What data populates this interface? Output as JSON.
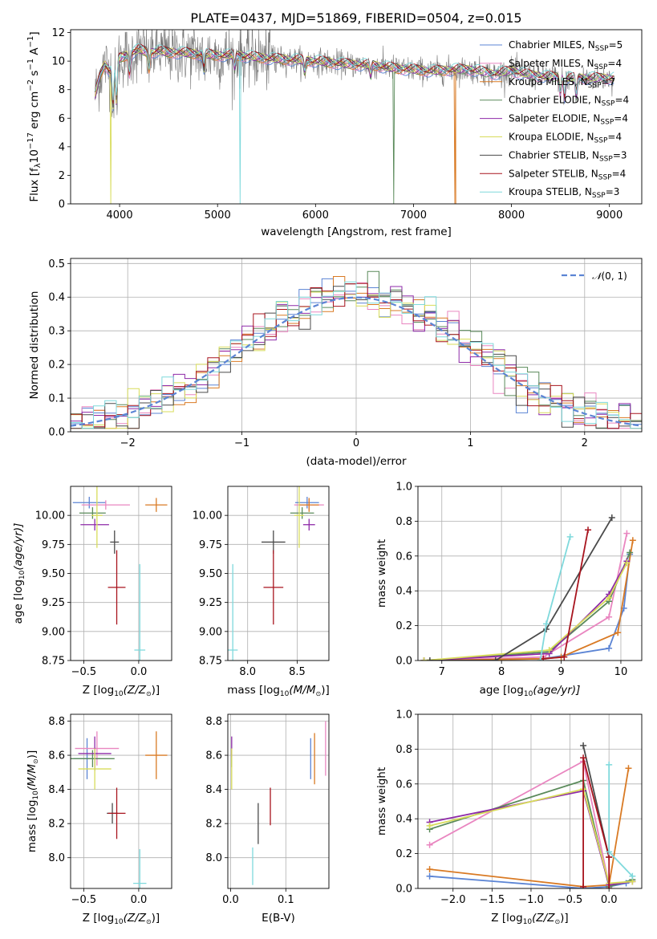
{
  "chart_data": [
    {
      "id": "spectrum",
      "type": "line",
      "title": "PLATE=0437, MJD=51869, FIBERID=0504, z=0.015",
      "xlabel": "wavelength [Angstrom, rest frame]",
      "ylabel_parts": {
        "pre": "Flux [f",
        "sub": "λ",
        "mid": "10",
        "sup1": "−17",
        "mid2": " erg cm",
        "sup2": "−2",
        "mid3": " s",
        "sup3": "−1",
        "mid4": " A",
        "sup4": "−1",
        "post": "]"
      },
      "xlim": [
        3500,
        9330
      ],
      "ylim": [
        0,
        12.2
      ],
      "xticks": [
        4000,
        5000,
        6000,
        7000,
        8000,
        9000
      ],
      "yticks": [
        0,
        2,
        4,
        6,
        8,
        10,
        12
      ],
      "legend": "top-right",
      "legend_sub": "SSP",
      "series": [
        {
          "name": "Chabrier MILES, N",
          "n": "=5",
          "color": "#5b84d4"
        },
        {
          "name": "Salpeter MILES, N",
          "n": "=4",
          "color": "#e986c0"
        },
        {
          "name": "Kroupa MILES, N",
          "n": "=7",
          "color": "#d97a24"
        },
        {
          "name": "Chabrier ELODIE, N",
          "n": "=4",
          "color": "#5a8a5a"
        },
        {
          "name": "Salpeter ELODIE, N",
          "n": "=4",
          "color": "#8e2aa8"
        },
        {
          "name": "Kroupa ELODIE, N",
          "n": "=4",
          "color": "#d8dc5a"
        },
        {
          "name": "Chabrier STELIB, N",
          "n": "=3",
          "color": "#4a4a4a"
        },
        {
          "name": "Salpeter STELIB, N",
          "n": "=4",
          "color": "#a8141e"
        },
        {
          "name": "Kroupa STELIB, N",
          "n": "=3",
          "color": "#7fd9dc"
        }
      ],
      "data_color": "#777777",
      "continuum": {
        "x": [
          3750,
          3800,
          3850,
          3900,
          3950,
          4000,
          4100,
          4200,
          4300,
          4400,
          4500,
          4600,
          4800,
          5000,
          5200,
          5500,
          6000,
          6300,
          6600,
          6800,
          7000,
          7200,
          7400,
          7600,
          7800,
          8000,
          8200,
          8400,
          8600,
          8800,
          9000,
          9050
        ],
        "y": [
          7.6,
          9.0,
          9.8,
          9.3,
          9.6,
          10.2,
          10.5,
          10.8,
          10.6,
          10.7,
          10.6,
          10.6,
          10.5,
          10.4,
          10.4,
          10.2,
          10.0,
          9.8,
          9.7,
          9.5,
          9.4,
          9.3,
          9.4,
          9.4,
          9.1,
          9.3,
          9.0,
          8.9,
          8.8,
          8.8,
          8.8,
          8.8
        ]
      }
    },
    {
      "id": "residual-histogram",
      "type": "step",
      "xlabel": "(data-model)/error",
      "ylabel": "Normed distribution",
      "xlim": [
        -2.5,
        2.5
      ],
      "ylim": [
        0,
        0.515
      ],
      "xticks": [
        -2,
        -1,
        0,
        1,
        2
      ],
      "xtick_labels": [
        "−2",
        "−1",
        "0",
        "1",
        "2"
      ],
      "yticks": [
        0.0,
        0.1,
        0.2,
        0.3,
        0.4,
        0.5
      ],
      "ytick_labels": [
        "0.0",
        "0.1",
        "0.2",
        "0.3",
        "0.4",
        "0.5"
      ],
      "bin_width": 0.1,
      "legend": {
        "label": "N(0, 1)",
        "label_script": "𝒩",
        "label_rest": "(0, 1)",
        "placement": "top-right",
        "color": "#5b84d4"
      }
    },
    {
      "id": "age-vs-Z",
      "type": "errorbar",
      "xlabel_pre": "Z [log",
      "xlabel_sub": "10",
      "xlabel_post": "(Z/Z",
      "ylabel_pre": "age  [log",
      "ylabel_sub": "10",
      "ylabel_post": "(age/yr)]",
      "xlim": [
        -0.62,
        0.3
      ],
      "ylim": [
        8.75,
        10.25
      ],
      "xticks": [
        -0.5,
        0.0
      ],
      "xtick_labels": [
        "−0.5",
        "0.0"
      ],
      "yticks": [
        8.75,
        9.0,
        9.25,
        9.5,
        9.75,
        10.0
      ],
      "ytick_labels": [
        "8.75",
        "9.00",
        "9.25",
        "9.50",
        "9.75",
        "10.00"
      ],
      "points": [
        {
          "x": -0.45,
          "y": 10.11,
          "xerr": 0.15,
          "yerr": 0.05,
          "color": "#5b84d4"
        },
        {
          "x": -0.3,
          "y": 10.09,
          "xerr": 0.22,
          "yerr": 0.04,
          "color": "#e986c0"
        },
        {
          "x": 0.16,
          "y": 10.09,
          "xerr": 0.1,
          "yerr": 0.06,
          "color": "#d97a24"
        },
        {
          "x": -0.42,
          "y": 10.02,
          "xerr": 0.12,
          "yerr": 0.05,
          "color": "#5a8a5a"
        },
        {
          "x": -0.4,
          "y": 9.92,
          "xerr": 0.13,
          "yerr": 0.05,
          "color": "#8e2aa8"
        },
        {
          "x": -0.38,
          "y": 10.0,
          "xerr": 0.05,
          "yerr": 0.28,
          "color": "#d8dc5a"
        },
        {
          "x": -0.22,
          "y": 9.77,
          "xerr": 0.04,
          "yerr": 0.1,
          "color": "#4a4a4a"
        },
        {
          "x": -0.2,
          "y": 9.38,
          "xerr": 0.08,
          "yerr": 0.32,
          "color": "#a8141e"
        },
        {
          "x": 0.01,
          "y": 8.84,
          "xerr": 0.05,
          "yerr": 0.74,
          "color": "#7fd9dc"
        }
      ]
    },
    {
      "id": "age-vs-mass",
      "type": "errorbar",
      "xlabel_pre": "mass [log",
      "xlabel_sub": "10",
      "xlabel_post": "(M/M",
      "xlim": [
        7.8,
        8.82
      ],
      "ylim": [
        8.75,
        10.25
      ],
      "xticks": [
        8.0,
        8.5
      ],
      "xtick_labels": [
        "8.0",
        "8.5"
      ],
      "yticks": [
        8.75,
        9.0,
        9.25,
        9.5,
        9.75,
        10.0
      ],
      "ytick_labels": [
        "8.75",
        "9.00",
        "9.25",
        "9.50",
        "9.75",
        "10.00"
      ],
      "points": [
        {
          "x": 8.6,
          "y": 10.11,
          "xerr": 0.12,
          "yerr": 0.05,
          "color": "#5b84d4"
        },
        {
          "x": 8.62,
          "y": 10.09,
          "xerr": 0.15,
          "yerr": 0.05,
          "color": "#e986c0"
        },
        {
          "x": 8.62,
          "y": 10.09,
          "xerr": 0.1,
          "yerr": 0.06,
          "color": "#d97a24"
        },
        {
          "x": 8.55,
          "y": 10.02,
          "xerr": 0.12,
          "yerr": 0.05,
          "color": "#5a8a5a"
        },
        {
          "x": 8.62,
          "y": 9.92,
          "xerr": 0.06,
          "yerr": 0.05,
          "color": "#8e2aa8"
        },
        {
          "x": 8.52,
          "y": 10.0,
          "xerr": 0.05,
          "yerr": 0.28,
          "color": "#d8dc5a"
        },
        {
          "x": 8.26,
          "y": 9.77,
          "xerr": 0.12,
          "yerr": 0.1,
          "color": "#4a4a4a"
        },
        {
          "x": 8.26,
          "y": 9.38,
          "xerr": 0.1,
          "yerr": 0.32,
          "color": "#a8141e"
        },
        {
          "x": 7.85,
          "y": 8.84,
          "xerr": 0.05,
          "yerr": 0.74,
          "color": "#7fd9dc"
        }
      ]
    },
    {
      "id": "massweight-vs-age",
      "type": "line",
      "xlabel_pre": "age  [log",
      "xlabel_sub": "10",
      "xlabel_post": "(age/yr)]",
      "ylabel": "mass weight",
      "xlim": [
        6.6,
        10.35
      ],
      "ylim": [
        0,
        1.0
      ],
      "xticks": [
        7,
        8,
        9,
        10
      ],
      "xtick_labels": [
        "7",
        "8",
        "9",
        "10"
      ],
      "yticks": [
        0,
        0.2,
        0.4,
        0.6,
        0.8,
        1.0
      ],
      "ytick_labels": [
        "0.0",
        "0.2",
        "0.4",
        "0.6",
        "0.8",
        "1.0"
      ],
      "series": [
        {
          "color": "#5b84d4",
          "x": [
            6.7,
            8.7,
            9.8,
            10.05,
            10.15
          ],
          "y": [
            0.0,
            0.01,
            0.07,
            0.3,
            0.61
          ]
        },
        {
          "color": "#e986c0",
          "x": [
            6.7,
            8.7,
            9.8,
            10.1
          ],
          "y": [
            0.0,
            0.02,
            0.25,
            0.73
          ]
        },
        {
          "color": "#d97a24",
          "x": [
            6.7,
            8.7,
            9.0,
            9.95,
            10.2
          ],
          "y": [
            0.0,
            0.01,
            0.02,
            0.16,
            0.69
          ]
        },
        {
          "color": "#5a8a5a",
          "x": [
            6.7,
            8.8,
            9.8,
            10.15
          ],
          "y": [
            0.0,
            0.05,
            0.34,
            0.62
          ]
        },
        {
          "color": "#8e2aa8",
          "x": [
            6.7,
            8.8,
            9.8,
            10.1
          ],
          "y": [
            0.0,
            0.04,
            0.38,
            0.57
          ]
        },
        {
          "color": "#d8dc5a",
          "x": [
            6.7,
            8.8,
            9.8,
            10.1
          ],
          "y": [
            0.0,
            0.06,
            0.36,
            0.56
          ]
        },
        {
          "color": "#4a4a4a",
          "x": [
            6.8,
            7.9,
            8.75,
            9.85
          ],
          "y": [
            0.0,
            0.0,
            0.18,
            0.82
          ]
        },
        {
          "color": "#a8141e",
          "x": [
            8.7,
            9.05,
            9.45
          ],
          "y": [
            0.01,
            0.02,
            0.75
          ]
        },
        {
          "color": "#7fd9dc",
          "x": [
            8.65,
            8.75,
            9.15
          ],
          "y": [
            0.0,
            0.21,
            0.71
          ]
        }
      ]
    },
    {
      "id": "mass-vs-Z",
      "type": "errorbar",
      "xlabel_pre": "Z [log",
      "xlabel_sub": "10",
      "xlabel_post": "(Z/Z",
      "ylabel_pre": "mass [log",
      "ylabel_sub": "10",
      "ylabel_post": "(M/M",
      "xlim": [
        -0.62,
        0.3
      ],
      "ylim": [
        7.82,
        8.84
      ],
      "xticks": [
        -0.5,
        0.0
      ],
      "xtick_labels": [
        "−0.5",
        "0.0"
      ],
      "yticks": [
        8.0,
        8.2,
        8.4,
        8.6,
        8.8
      ],
      "ytick_labels": [
        "8.0",
        "8.2",
        "8.4",
        "8.6",
        "8.8"
      ],
      "points": [
        {
          "x": -0.47,
          "y": 8.58,
          "xerr": 0.12,
          "yerr": 0.12,
          "color": "#5b84d4"
        },
        {
          "x": -0.38,
          "y": 8.64,
          "xerr": 0.2,
          "yerr": 0.1,
          "color": "#e986c0"
        },
        {
          "x": 0.16,
          "y": 8.6,
          "xerr": 0.1,
          "yerr": 0.14,
          "color": "#d97a24"
        },
        {
          "x": -0.42,
          "y": 8.58,
          "xerr": 0.2,
          "yerr": 0.05,
          "color": "#5a8a5a"
        },
        {
          "x": -0.4,
          "y": 8.61,
          "xerr": 0.15,
          "yerr": 0.1,
          "color": "#8e2aa8"
        },
        {
          "x": -0.4,
          "y": 8.52,
          "xerr": 0.15,
          "yerr": 0.12,
          "color": "#d8dc5a"
        },
        {
          "x": -0.24,
          "y": 8.26,
          "xerr": 0.05,
          "yerr": 0.06,
          "color": "#4a4a4a"
        },
        {
          "x": -0.2,
          "y": 8.26,
          "xerr": 0.08,
          "yerr": 0.15,
          "color": "#a8141e"
        },
        {
          "x": 0.01,
          "y": 7.85,
          "xerr": 0.06,
          "yerr": 0.2,
          "color": "#7fd9dc"
        }
      ]
    },
    {
      "id": "mass-vs-EBV",
      "type": "errorbar",
      "xlabel": "E(B-V)",
      "xlim": [
        -0.005,
        0.178
      ],
      "ylim": [
        7.82,
        8.84
      ],
      "xticks": [
        0.0,
        0.1
      ],
      "xtick_labels": [
        "0.0",
        "0.1"
      ],
      "yticks": [
        8.0,
        8.2,
        8.4,
        8.6,
        8.8
      ],
      "ytick_labels": [
        "8.0",
        "8.2",
        "8.4",
        "8.6",
        "8.8"
      ],
      "points": [
        {
          "x": 0.145,
          "y": 8.58,
          "xerr": 0.0,
          "yerr": 0.12,
          "color": "#5b84d4"
        },
        {
          "x": 0.172,
          "y": 8.64,
          "xerr": 0.0,
          "yerr": 0.16,
          "color": "#e986c0"
        },
        {
          "x": 0.152,
          "y": 8.58,
          "xerr": 0.0,
          "yerr": 0.15,
          "color": "#d97a24"
        },
        {
          "x": 0.002,
          "y": 8.58,
          "xerr": 0.0,
          "yerr": 0.05,
          "color": "#5a8a5a"
        },
        {
          "x": 0.002,
          "y": 8.65,
          "xerr": 0.0,
          "yerr": 0.06,
          "color": "#8e2aa8"
        },
        {
          "x": 0.002,
          "y": 8.52,
          "xerr": 0.0,
          "yerr": 0.12,
          "color": "#d8dc5a"
        },
        {
          "x": 0.05,
          "y": 8.2,
          "xerr": 0.0,
          "yerr": 0.12,
          "color": "#4a4a4a"
        },
        {
          "x": 0.072,
          "y": 8.3,
          "xerr": 0.0,
          "yerr": 0.11,
          "color": "#a8141e"
        },
        {
          "x": 0.04,
          "y": 7.95,
          "xerr": 0.0,
          "yerr": 0.11,
          "color": "#7fd9dc"
        }
      ]
    },
    {
      "id": "massweight-vs-Z",
      "type": "line",
      "xlabel_pre": "Z [log",
      "xlabel_sub": "10",
      "xlabel_post": "(Z/Z",
      "ylabel": "mass weight",
      "xlim": [
        -2.45,
        0.42
      ],
      "ylim": [
        0,
        1.0
      ],
      "xticks": [
        -2.0,
        -1.5,
        -1.0,
        -0.5,
        0.0
      ],
      "xtick_labels": [
        "−2.0",
        "−1.5",
        "−1.0",
        "−0.5",
        "0.0"
      ],
      "yticks": [
        0,
        0.2,
        0.4,
        0.6,
        0.8,
        1.0
      ],
      "ytick_labels": [
        "0.0",
        "0.2",
        "0.4",
        "0.6",
        "0.8",
        "1.0"
      ],
      "series": [
        {
          "color": "#5b84d4",
          "x": [
            -2.3,
            -0.33,
            0.0,
            0.22
          ],
          "y": [
            0.07,
            0.0,
            0.01,
            0.03
          ]
        },
        {
          "color": "#e986c0",
          "x": [
            -2.3,
            -0.33,
            0.0,
            0.3
          ],
          "y": [
            0.25,
            0.73,
            0.02,
            0.04
          ]
        },
        {
          "color": "#d97a24",
          "x": [
            -2.3,
            -0.33,
            0.0,
            0.25
          ],
          "y": [
            0.11,
            0.01,
            0.02,
            0.69
          ]
        },
        {
          "color": "#5a8a5a",
          "x": [
            -2.3,
            -0.33,
            0.0,
            0.3
          ],
          "y": [
            0.34,
            0.62,
            0.01,
            0.05
          ]
        },
        {
          "color": "#8e2aa8",
          "x": [
            -2.3,
            -0.33,
            0.0,
            0.3
          ],
          "y": [
            0.38,
            0.56,
            0.02,
            0.04
          ]
        },
        {
          "color": "#d8dc5a",
          "x": [
            -2.3,
            -0.33,
            0.0,
            0.3
          ],
          "y": [
            0.36,
            0.57,
            0.03,
            0.04
          ]
        },
        {
          "color": "#4a4a4a",
          "x": [
            -0.33,
            0.0
          ],
          "y": [
            0.82,
            0.18
          ]
        },
        {
          "color": "#a8141e",
          "x": [
            -0.33,
            -0.33,
            0.0,
            0.0
          ],
          "y": [
            0.01,
            0.75,
            0.18,
            0.0
          ]
        },
        {
          "color": "#7fd9dc",
          "x": [
            0.0,
            0.0,
            0.3
          ],
          "y": [
            0.71,
            0.21,
            0.07
          ]
        }
      ]
    }
  ]
}
